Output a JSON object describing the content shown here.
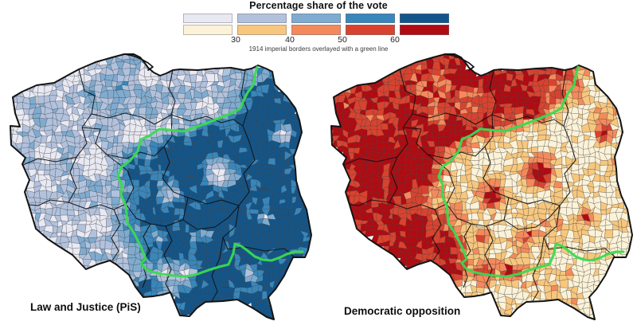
{
  "figure": {
    "title": "Percentage share of the vote",
    "note": "1914 imperial borders overlayed with a green line"
  },
  "legend": {
    "ticks": [
      "30",
      "40",
      "50",
      "60"
    ],
    "rows": [
      {
        "name": "pis-blues",
        "colors": [
          "#e9e9f3",
          "#b2c2dd",
          "#7fabd0",
          "#3986ba",
          "#135589"
        ]
      },
      {
        "name": "opp-reds",
        "colors": [
          "#fbf2d8",
          "#f7c77e",
          "#f48a5c",
          "#d8432f",
          "#b00b12"
        ]
      }
    ]
  },
  "maps": [
    {
      "id": "pis",
      "label": "Law and Justice (PiS)",
      "palette_row": 0
    },
    {
      "id": "opp",
      "label": "Democratic opposition",
      "palette_row": 1
    }
  ],
  "overlay": {
    "green_line_color": "#3ada52"
  },
  "chart_data": {
    "type": "choropleth",
    "title": "Percentage share of the vote",
    "annotation": "1914 imperial borders overlayed with a green line",
    "bins": [
      "<30",
      "30-40",
      "40-50",
      "50-60",
      ">60"
    ],
    "bin_edges": [
      30,
      40,
      50,
      60
    ],
    "maps": [
      {
        "name": "Law and Justice (PiS)",
        "palette": [
          "#e9e9f3",
          "#b2c2dd",
          "#7fabd0",
          "#3986ba",
          "#135589"
        ],
        "pattern": "higher vote share east and south of the 1914 imperial border (former Russian and Austrian partitions); lower in the west and north; low in major cities"
      },
      {
        "name": "Democratic opposition",
        "palette": [
          "#fbf2d8",
          "#f7c77e",
          "#f48a5c",
          "#d8432f",
          "#b00b12"
        ],
        "pattern": "higher vote share west and north of the 1914 imperial border (former German partition) and in major cities; lower in the east and south"
      }
    ]
  }
}
